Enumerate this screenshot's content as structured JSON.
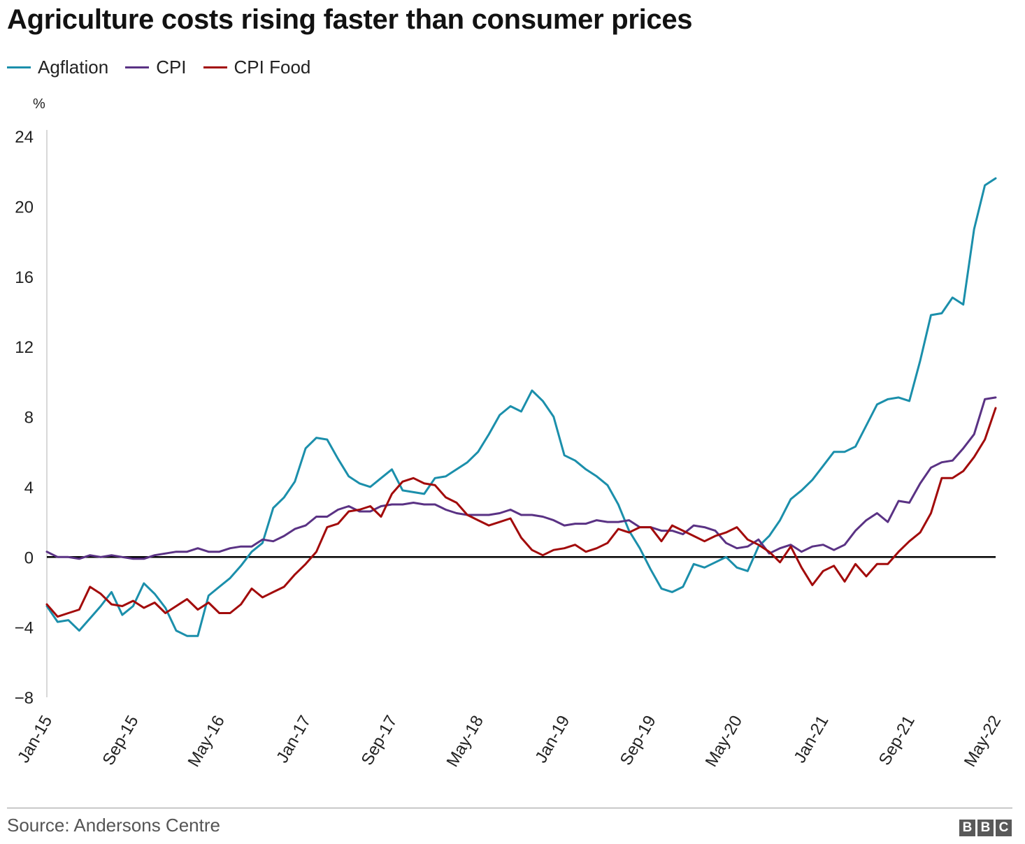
{
  "title": "Agriculture costs rising faster than consumer prices",
  "unit_label": "%",
  "source": "Source: Andersons Centre",
  "logo": [
    "B",
    "B",
    "C"
  ],
  "colors": {
    "agflation": "#1b8fab",
    "cpi": "#5a3284",
    "cpi_food": "#a20b0b",
    "zero_line": "#000000",
    "axis": "#cccccc"
  },
  "chart_data": {
    "type": "line",
    "title": "Agriculture costs rising faster than consumer prices",
    "ylabel": "%",
    "ylim": [
      -8,
      24
    ],
    "yticks": [
      24,
      20,
      16,
      12,
      8,
      4,
      0,
      -4,
      -8
    ],
    "xlim": [
      "Jan-15",
      "May-22"
    ],
    "xticks": [
      "Jan-15",
      "Sep-15",
      "May-16",
      "Jan-17",
      "Sep-17",
      "May-18",
      "Jan-19",
      "Sep-19",
      "May-20",
      "Jan-21",
      "Sep-21",
      "May-22"
    ],
    "grid": false,
    "legend_position": "top-left",
    "series": [
      {
        "name": "Agflation",
        "color": "#1b8fab",
        "values": [
          -2.8,
          -3.7,
          -3.6,
          -4.2,
          -3.5,
          -2.8,
          -2.0,
          -3.3,
          -2.8,
          -1.5,
          -2.1,
          -2.9,
          -4.2,
          -4.5,
          -4.5,
          -2.2,
          -1.7,
          -1.2,
          -0.5,
          0.3,
          0.8,
          2.8,
          3.4,
          4.3,
          6.2,
          6.8,
          6.7,
          5.6,
          4.6,
          4.2,
          4.0,
          4.5,
          5.0,
          3.8,
          3.7,
          3.6,
          4.5,
          4.6,
          5.0,
          5.4,
          6.0,
          7.0,
          8.1,
          8.6,
          8.3,
          9.5,
          8.9,
          8.0,
          5.8,
          5.5,
          5.0,
          4.6,
          4.1,
          3.0,
          1.5,
          0.5,
          -0.7,
          -1.8,
          -2.0,
          -1.7,
          -0.4,
          -0.6,
          -0.3,
          0.0,
          -0.6,
          -0.8,
          0.6,
          1.2,
          2.1,
          3.3,
          3.8,
          4.4,
          5.2,
          6.0,
          6.0,
          6.3,
          7.5,
          8.7,
          9.0,
          9.1,
          8.9,
          11.2,
          13.8,
          13.9,
          14.8,
          14.4,
          18.7,
          21.2,
          21.6
        ]
      },
      {
        "name": "CPI",
        "color": "#5a3284",
        "values": [
          0.3,
          0.0,
          0.0,
          -0.1,
          0.1,
          0.0,
          0.1,
          0.0,
          -0.1,
          -0.1,
          0.1,
          0.2,
          0.3,
          0.3,
          0.5,
          0.3,
          0.3,
          0.5,
          0.6,
          0.6,
          1.0,
          0.9,
          1.2,
          1.6,
          1.8,
          2.3,
          2.3,
          2.7,
          2.9,
          2.6,
          2.6,
          2.9,
          3.0,
          3.0,
          3.1,
          3.0,
          3.0,
          2.7,
          2.5,
          2.4,
          2.4,
          2.4,
          2.5,
          2.7,
          2.4,
          2.4,
          2.3,
          2.1,
          1.8,
          1.9,
          1.9,
          2.1,
          2.0,
          2.0,
          2.1,
          1.7,
          1.7,
          1.5,
          1.5,
          1.3,
          1.8,
          1.7,
          1.5,
          0.8,
          0.5,
          0.6,
          1.0,
          0.2,
          0.5,
          0.7,
          0.3,
          0.6,
          0.7,
          0.4,
          0.7,
          1.5,
          2.1,
          2.5,
          2.0,
          3.2,
          3.1,
          4.2,
          5.1,
          5.4,
          5.5,
          6.2,
          7.0,
          9.0,
          9.1
        ]
      },
      {
        "name": "CPI Food",
        "color": "#a20b0b",
        "values": [
          -2.7,
          -3.4,
          -3.2,
          -3.0,
          -1.7,
          -2.1,
          -2.7,
          -2.8,
          -2.5,
          -2.9,
          -2.6,
          -3.2,
          -2.8,
          -2.4,
          -3.0,
          -2.6,
          -3.2,
          -3.2,
          -2.7,
          -1.8,
          -2.3,
          -2.0,
          -1.7,
          -1.0,
          -0.4,
          0.3,
          1.7,
          1.9,
          2.6,
          2.7,
          2.9,
          2.3,
          3.6,
          4.3,
          4.5,
          4.2,
          4.1,
          3.4,
          3.1,
          2.4,
          2.1,
          1.8,
          2.0,
          2.2,
          1.1,
          0.4,
          0.1,
          0.4,
          0.5,
          0.7,
          0.3,
          0.5,
          0.8,
          1.6,
          1.4,
          1.7,
          1.7,
          0.9,
          1.8,
          1.5,
          1.2,
          0.9,
          1.2,
          1.4,
          1.7,
          1.0,
          0.7,
          0.3,
          -0.3,
          0.6,
          -0.6,
          -1.6,
          -0.8,
          -0.5,
          -1.4,
          -0.4,
          -1.1,
          -0.4,
          -0.4,
          0.3,
          0.9,
          1.4,
          2.5,
          4.5,
          4.5,
          4.9,
          5.7,
          6.7,
          8.5
        ]
      }
    ]
  }
}
